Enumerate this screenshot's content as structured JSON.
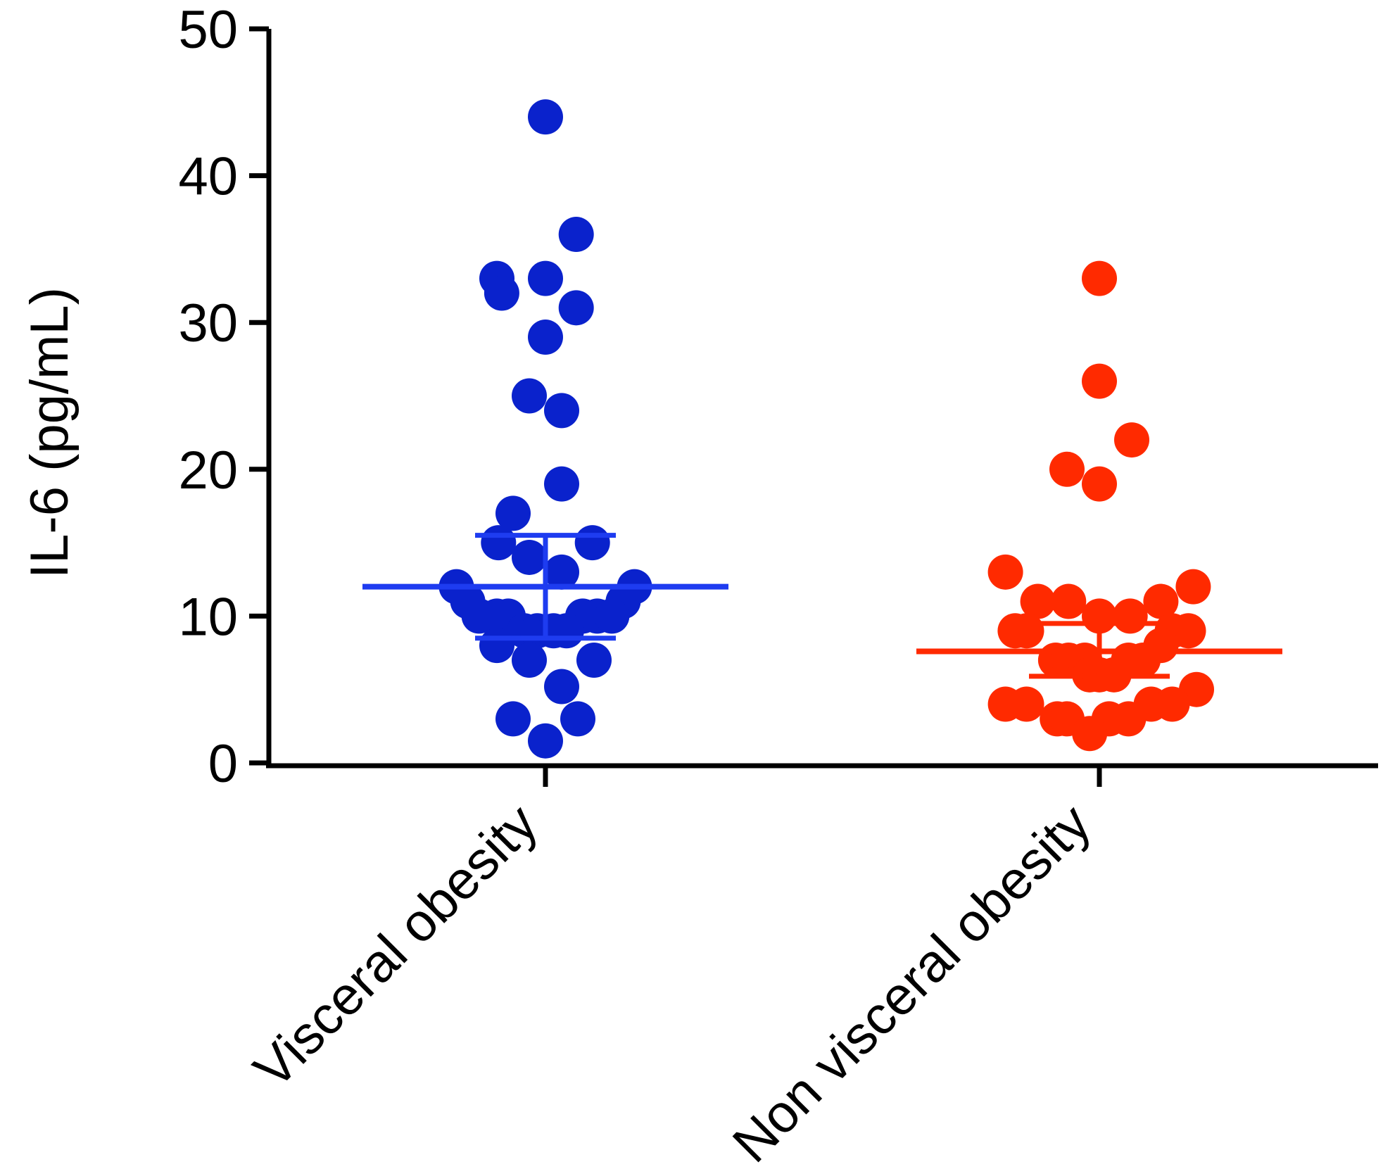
{
  "chart_data": {
    "type": "scatter",
    "subtype": "dot-plot-with-mean-and-error",
    "ylabel": "IL-6 (pg/mL)",
    "ylim": [
      0,
      50
    ],
    "yticks": [
      0,
      10,
      20,
      30,
      40,
      50
    ],
    "grid": false,
    "categories": [
      "Visceral obesity",
      "Non visceral obesity"
    ],
    "series": [
      {
        "category": "Visceral obesity",
        "color": "#0a22cc",
        "mean_color": "#1e3cf0",
        "mean": 12,
        "error_upper": 15.5,
        "error_lower": 8.5,
        "points": [
          {
            "offset": 0.0,
            "y": 44
          },
          {
            "offset": 0.19,
            "y": 36
          },
          {
            "offset": -0.3,
            "y": 33
          },
          {
            "offset": -0.27,
            "y": 32
          },
          {
            "offset": 0.0,
            "y": 33
          },
          {
            "offset": 0.19,
            "y": 31
          },
          {
            "offset": 0.0,
            "y": 29
          },
          {
            "offset": -0.1,
            "y": 25
          },
          {
            "offset": 0.1,
            "y": 24
          },
          {
            "offset": 0.1,
            "y": 19
          },
          {
            "offset": -0.2,
            "y": 17
          },
          {
            "offset": -0.29,
            "y": 15
          },
          {
            "offset": 0.29,
            "y": 15
          },
          {
            "offset": -0.1,
            "y": 14
          },
          {
            "offset": 0.1,
            "y": 13
          },
          {
            "offset": -0.55,
            "y": 12
          },
          {
            "offset": 0.55,
            "y": 12
          },
          {
            "offset": -0.48,
            "y": 11
          },
          {
            "offset": 0.48,
            "y": 11
          },
          {
            "offset": -0.41,
            "y": 10
          },
          {
            "offset": -0.3,
            "y": 10
          },
          {
            "offset": -0.23,
            "y": 10
          },
          {
            "offset": 0.23,
            "y": 10
          },
          {
            "offset": 0.32,
            "y": 10
          },
          {
            "offset": 0.41,
            "y": 10
          },
          {
            "offset": -0.13,
            "y": 9
          },
          {
            "offset": -0.05,
            "y": 9
          },
          {
            "offset": 0.05,
            "y": 9
          },
          {
            "offset": 0.13,
            "y": 9
          },
          {
            "offset": -0.3,
            "y": 8
          },
          {
            "offset": -0.1,
            "y": 7
          },
          {
            "offset": 0.3,
            "y": 7
          },
          {
            "offset": 0.1,
            "y": 5.2
          },
          {
            "offset": -0.2,
            "y": 3
          },
          {
            "offset": 0.2,
            "y": 3
          },
          {
            "offset": 0.0,
            "y": 1.5
          }
        ]
      },
      {
        "category": "Non visceral obesity",
        "color": "#ff2a00",
        "mean_color": "#ff2a00",
        "mean": 7.6,
        "error_upper": 9.5,
        "error_lower": 5.9,
        "points": [
          {
            "offset": 0.0,
            "y": 33
          },
          {
            "offset": 0.0,
            "y": 26
          },
          {
            "offset": 0.2,
            "y": 22
          },
          {
            "offset": -0.2,
            "y": 20
          },
          {
            "offset": 0.0,
            "y": 19
          },
          {
            "offset": -0.58,
            "y": 13
          },
          {
            "offset": 0.58,
            "y": 12
          },
          {
            "offset": -0.38,
            "y": 11
          },
          {
            "offset": -0.19,
            "y": 11
          },
          {
            "offset": 0.38,
            "y": 11
          },
          {
            "offset": 0.0,
            "y": 10
          },
          {
            "offset": 0.19,
            "y": 10
          },
          {
            "offset": -0.52,
            "y": 9
          },
          {
            "offset": -0.45,
            "y": 9
          },
          {
            "offset": 0.45,
            "y": 9
          },
          {
            "offset": 0.55,
            "y": 9
          },
          {
            "offset": 0.38,
            "y": 8
          },
          {
            "offset": -0.27,
            "y": 7
          },
          {
            "offset": -0.19,
            "y": 7
          },
          {
            "offset": -0.09,
            "y": 7
          },
          {
            "offset": 0.18,
            "y": 7
          },
          {
            "offset": 0.27,
            "y": 7
          },
          {
            "offset": -0.06,
            "y": 6
          },
          {
            "offset": 0.0,
            "y": 6
          },
          {
            "offset": 0.09,
            "y": 6
          },
          {
            "offset": 0.6,
            "y": 5
          },
          {
            "offset": -0.58,
            "y": 4
          },
          {
            "offset": -0.45,
            "y": 4
          },
          {
            "offset": 0.32,
            "y": 4
          },
          {
            "offset": 0.45,
            "y": 4
          },
          {
            "offset": -0.26,
            "y": 3
          },
          {
            "offset": -0.2,
            "y": 3
          },
          {
            "offset": 0.06,
            "y": 3
          },
          {
            "offset": 0.18,
            "y": 3
          },
          {
            "offset": -0.06,
            "y": 2
          }
        ]
      }
    ]
  }
}
